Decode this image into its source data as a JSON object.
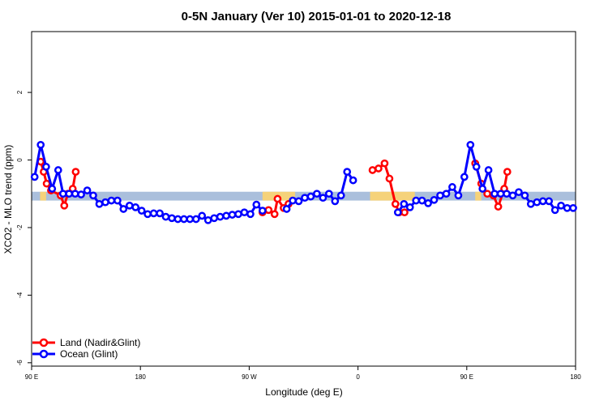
{
  "chart_data": {
    "type": "line",
    "title": "0-5N January (Ver 10)   2015-01-01 to 2020-12-18",
    "xlabel": "Longitude (deg E)",
    "ylabel": "XCO2 - MLO trend (ppm)",
    "xlim": [
      90,
      540
    ],
    "ylim": [
      -6.1,
      3.8
    ],
    "x_ticks": [
      {
        "value": 90,
        "label": "90 E"
      },
      {
        "value": 180,
        "label": "180"
      },
      {
        "value": 270,
        "label": "90 W"
      },
      {
        "value": 360,
        "label": "0"
      },
      {
        "value": 450,
        "label": "90 E"
      },
      {
        "value": 540,
        "label": "180"
      }
    ],
    "y_ticks": [
      {
        "value": 2,
        "label": "2"
      },
      {
        "value": 0,
        "label": "0"
      },
      {
        "value": -2,
        "label": "-2"
      },
      {
        "value": -4,
        "label": "-4"
      },
      {
        "value": -6,
        "label": "-6"
      }
    ],
    "band": {
      "y_center": -1.07,
      "half_width": 0.13,
      "base_color": "#aabfdc",
      "highlight_color": "#f5d27a",
      "highlights": [
        [
          97,
          102
        ],
        [
          281,
          308
        ],
        [
          370,
          407
        ],
        [
          457,
          462
        ]
      ]
    },
    "legend": {
      "position": "bottom-left"
    },
    "series": [
      {
        "name": "Land (Nadir&Glint)",
        "color": "#ff0000",
        "segments": [
          [
            [
              97.5,
              -0.05
            ],
            [
              100,
              -0.35
            ],
            [
              102.5,
              -0.7
            ],
            [
              106,
              -0.9
            ],
            [
              114,
              -1.05
            ],
            [
              117,
              -1.35
            ],
            [
              120,
              -1.0
            ],
            [
              124,
              -0.85
            ],
            [
              126.5,
              -0.35
            ]
          ],
          [
            [
              281,
              -1.55
            ],
            [
              286,
              -1.48
            ],
            [
              291,
              -1.6
            ],
            [
              293.5,
              -1.15
            ],
            [
              298.5,
              -1.42
            ],
            [
              302.5,
              -1.3
            ]
          ],
          [
            [
              372,
              -0.3
            ],
            [
              377,
              -0.25
            ],
            [
              382,
              -0.1
            ],
            [
              386,
              -0.55
            ],
            [
              391,
              -1.3
            ],
            [
              394,
              -1.55
            ],
            [
              398.5,
              -1.55
            ]
          ],
          [
            [
              457,
              -0.1
            ],
            [
              462,
              -0.7
            ],
            [
              467,
              -1.0
            ],
            [
              472,
              -1.05
            ],
            [
              476,
              -1.38
            ],
            [
              481,
              -0.85
            ],
            [
              483.5,
              -0.35
            ]
          ]
        ]
      },
      {
        "name": "Ocean (Glint)",
        "color": "#0000ff",
        "segments": [
          [
            [
              92.5,
              -0.5
            ],
            [
              97.5,
              0.45
            ],
            [
              102,
              -0.2
            ],
            [
              107,
              -0.85
            ],
            [
              112,
              -0.3
            ],
            [
              116,
              -1.0
            ],
            [
              121,
              -1.0
            ],
            [
              126,
              -1.0
            ],
            [
              131,
              -1.02
            ],
            [
              136,
              -0.9
            ],
            [
              141,
              -1.05
            ],
            [
              146,
              -1.3
            ],
            [
              151,
              -1.25
            ],
            [
              156,
              -1.2
            ],
            [
              161,
              -1.2
            ],
            [
              166,
              -1.45
            ],
            [
              171,
              -1.35
            ],
            [
              176,
              -1.4
            ],
            [
              181,
              -1.5
            ],
            [
              186,
              -1.6
            ],
            [
              191,
              -1.58
            ],
            [
              196,
              -1.58
            ],
            [
              201,
              -1.68
            ],
            [
              206,
              -1.72
            ],
            [
              211,
              -1.75
            ],
            [
              216,
              -1.75
            ],
            [
              221,
              -1.75
            ],
            [
              226,
              -1.75
            ],
            [
              231,
              -1.65
            ],
            [
              236,
              -1.78
            ],
            [
              241,
              -1.72
            ],
            [
              246,
              -1.68
            ],
            [
              251,
              -1.65
            ],
            [
              256,
              -1.62
            ],
            [
              261,
              -1.6
            ],
            [
              266,
              -1.55
            ],
            [
              271,
              -1.6
            ],
            [
              276,
              -1.32
            ],
            [
              281,
              -1.5
            ]
          ],
          [
            [
              301,
              -1.45
            ],
            [
              306,
              -1.2
            ],
            [
              311,
              -1.22
            ],
            [
              316,
              -1.12
            ],
            [
              321,
              -1.08
            ],
            [
              326,
              -1.0
            ],
            [
              331,
              -1.12
            ],
            [
              336,
              -1.0
            ],
            [
              341,
              -1.22
            ],
            [
              346,
              -1.05
            ],
            [
              351,
              -0.35
            ],
            [
              356,
              -0.6
            ]
          ],
          [
            [
              393,
              -1.55
            ],
            [
              398,
              -1.3
            ],
            [
              403,
              -1.4
            ],
            [
              408,
              -1.2
            ],
            [
              413,
              -1.2
            ],
            [
              418,
              -1.28
            ],
            [
              423,
              -1.18
            ],
            [
              428,
              -1.05
            ],
            [
              433,
              -1.0
            ],
            [
              438,
              -0.8
            ],
            [
              443,
              -1.05
            ],
            [
              448,
              -0.5
            ],
            [
              453,
              0.45
            ],
            [
              458,
              -0.2
            ],
            [
              463,
              -0.85
            ],
            [
              468,
              -0.3
            ],
            [
              473,
              -1.0
            ],
            [
              478,
              -1.0
            ],
            [
              483,
              -1.0
            ],
            [
              488,
              -1.05
            ],
            [
              493,
              -0.95
            ],
            [
              498,
              -1.05
            ],
            [
              503,
              -1.3
            ],
            [
              508,
              -1.25
            ],
            [
              513,
              -1.22
            ],
            [
              518,
              -1.22
            ],
            [
              523,
              -1.48
            ],
            [
              528,
              -1.35
            ],
            [
              533,
              -1.42
            ],
            [
              538,
              -1.42
            ]
          ]
        ]
      }
    ]
  }
}
